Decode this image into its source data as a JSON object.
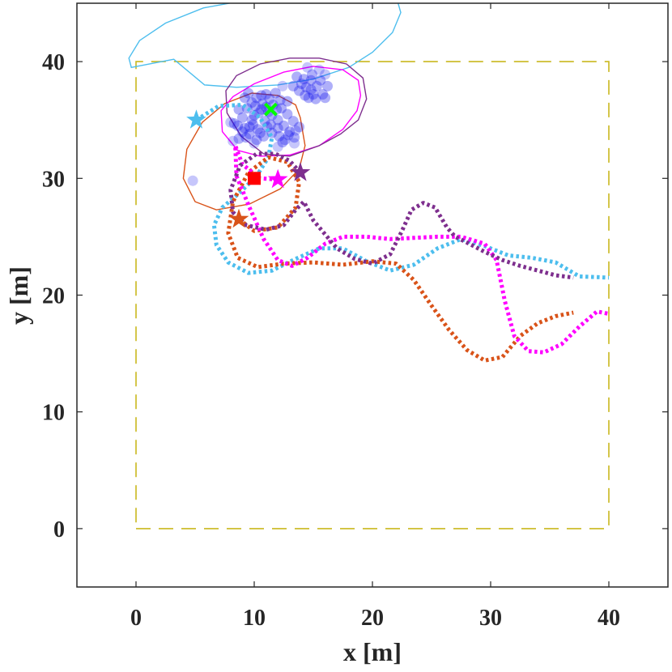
{
  "chart_data": {
    "type": "scatter",
    "title": "",
    "xlabel": "x [m]",
    "ylabel": "y [m]",
    "xlim": [
      -5,
      45
    ],
    "ylim": [
      -5,
      45
    ],
    "xticks": [
      0,
      10,
      20,
      30,
      40
    ],
    "yticks": [
      0,
      10,
      20,
      30,
      40
    ],
    "grid": false,
    "legend": "none",
    "boundary": {
      "x": [
        0,
        40,
        40,
        0,
        0
      ],
      "y": [
        0,
        0,
        40,
        40,
        0
      ],
      "color": "#c9b81e",
      "style": "dashed"
    },
    "paths": [
      {
        "color": "#4dbeee",
        "style": "dotted",
        "start_star": [
          5.1,
          35.0
        ],
        "x": [
          5.1,
          7,
          9,
          10.5,
          11.5,
          11.2,
          10.2,
          8.8,
          7.3,
          6.6,
          6.8,
          7.8,
          9.5,
          11.5,
          13.5,
          15.5,
          17.5,
          19.5,
          21.5,
          23.5,
          25.5,
          27.5,
          29.5,
          31.5,
          33.5,
          35.5,
          37.5,
          40
        ],
        "y": [
          35.0,
          36.2,
          36.3,
          35.2,
          33.5,
          31.8,
          30.2,
          28.8,
          27.5,
          26.0,
          24.3,
          22.8,
          21.9,
          22.1,
          23.1,
          24.0,
          24.0,
          22.9,
          22.1,
          22.6,
          24.0,
          24.8,
          24.2,
          23.4,
          23.2,
          22.8,
          21.6,
          21.5
        ]
      },
      {
        "color": "#d95319",
        "style": "dotted",
        "start_star": [
          8.7,
          26.5
        ],
        "x": [
          8.7,
          10,
          12,
          13.5,
          13.8,
          12.8,
          11.2,
          9.5,
          8.2,
          7.8,
          8.6,
          10.3,
          12.5,
          15,
          17.5,
          20,
          22,
          23.5,
          25,
          26.5,
          28,
          29.5,
          31,
          32.5,
          34,
          35.5,
          37
        ],
        "y": [
          26.5,
          25.5,
          25.8,
          27.5,
          29.7,
          31.4,
          31.8,
          30.5,
          28.0,
          25.3,
          23.2,
          22.4,
          22.7,
          22.8,
          22.6,
          22.9,
          22.7,
          21.3,
          19.1,
          17.0,
          15.3,
          14.4,
          14.7,
          16.5,
          17.6,
          18.2,
          18.5
        ]
      },
      {
        "color": "#ff00ff",
        "style": "dotted",
        "start_star": [
          12.0,
          29.9
        ],
        "x": [
          12.0,
          10.5,
          9.0,
          8.4,
          8.5,
          9.6,
          10.8,
          12.0,
          13.2,
          14.5,
          16.0,
          17.5,
          19.5,
          21.5,
          23.5,
          25.5,
          27.5,
          29.5,
          30.5,
          31.2,
          32.0,
          33.2,
          34.5,
          36.0,
          37.5,
          39.0,
          40
        ],
        "y": [
          29.9,
          30.0,
          31.2,
          32.8,
          30.2,
          27.5,
          24.8,
          23.0,
          22.5,
          23.2,
          24.4,
          25.0,
          25.0,
          24.8,
          24.9,
          25.0,
          25.0,
          24.4,
          23.0,
          19.5,
          16.5,
          15.2,
          15.1,
          15.8,
          17.3,
          18.6,
          18.4
        ]
      },
      {
        "color": "#7e2f8e",
        "style": "dotted",
        "start_star": [
          13.9,
          30.5
        ],
        "x": [
          13.9,
          13.0,
          11.8,
          10.2,
          8.8,
          8.0,
          8.2,
          9.3,
          11.0,
          12.5,
          13.5,
          14.2,
          15.0,
          16.0,
          17.0,
          18.5,
          20.0,
          21.5,
          22.5,
          23.3,
          24.3,
          25.3,
          26.3,
          27.0,
          28.0,
          29.5,
          31.0,
          32.5,
          34.0,
          35.5,
          37.0
        ],
        "y": [
          30.5,
          31.5,
          32.1,
          32.1,
          31.1,
          29.0,
          27.1,
          26.0,
          25.6,
          26.0,
          27.3,
          28.0,
          26.4,
          25.2,
          24.0,
          23.1,
          22.7,
          23.5,
          25.5,
          27.3,
          27.9,
          27.5,
          25.8,
          25.0,
          24.5,
          23.7,
          23.0,
          22.5,
          22.1,
          21.7,
          21.5
        ]
      }
    ],
    "ellipses": [
      {
        "color": "#4dbeee",
        "points": [
          [
            3.2,
            40.2
          ],
          [
            -0.4,
            39.5
          ],
          [
            -0.6,
            40.3
          ],
          [
            0.3,
            41.8
          ],
          [
            2.5,
            43.3
          ],
          [
            5.7,
            44.6
          ],
          [
            9.5,
            45.3
          ],
          [
            13.3,
            45.6
          ],
          [
            17.0,
            45.7
          ],
          [
            20.0,
            45.8
          ],
          [
            22.0,
            45.6
          ],
          [
            22.4,
            44.2
          ],
          [
            21.7,
            42.5
          ],
          [
            20.0,
            40.8
          ],
          [
            18.0,
            39.5
          ],
          [
            15.0,
            38.5
          ],
          [
            12.0,
            38.0
          ],
          [
            8.5,
            37.8
          ],
          [
            5.8,
            38.0
          ],
          [
            3.2,
            40.2
          ]
        ]
      },
      {
        "color": "#d95319",
        "points": [
          [
            13.9,
            35.2
          ],
          [
            14.3,
            32.8
          ],
          [
            13.8,
            30.8
          ],
          [
            12.2,
            29.1
          ],
          [
            9.6,
            27.8
          ],
          [
            6.8,
            27.3
          ],
          [
            5.0,
            28.0
          ],
          [
            4.0,
            30.0
          ],
          [
            4.3,
            32.5
          ],
          [
            5.6,
            34.8
          ],
          [
            7.5,
            36.4
          ],
          [
            9.8,
            37.3
          ],
          [
            12.0,
            37.1
          ],
          [
            13.5,
            36.3
          ],
          [
            13.9,
            35.2
          ]
        ]
      },
      {
        "color": "#ff00ff",
        "points": [
          [
            19.0,
            37.1
          ],
          [
            18.7,
            35.8
          ],
          [
            17.5,
            34.2
          ],
          [
            15.5,
            32.8
          ],
          [
            13.0,
            32.0
          ],
          [
            10.5,
            31.9
          ],
          [
            8.6,
            32.4
          ],
          [
            7.3,
            34.0
          ],
          [
            7.2,
            35.8
          ],
          [
            8.2,
            37.0
          ],
          [
            10.0,
            38.1
          ],
          [
            12.5,
            39.1
          ],
          [
            15.0,
            39.6
          ],
          [
            17.5,
            39.3
          ],
          [
            18.8,
            38.4
          ],
          [
            19.0,
            37.1
          ]
        ]
      },
      {
        "color": "#7e2f8e",
        "points": [
          [
            19.5,
            36.8
          ],
          [
            18.8,
            35.0
          ],
          [
            17.3,
            33.8
          ],
          [
            15.5,
            32.8
          ],
          [
            13.0,
            31.9
          ],
          [
            10.8,
            32.1
          ],
          [
            8.9,
            33.6
          ],
          [
            7.7,
            35.6
          ],
          [
            7.6,
            37.5
          ],
          [
            8.5,
            38.8
          ],
          [
            10.5,
            39.8
          ],
          [
            13.0,
            40.3
          ],
          [
            15.5,
            40.3
          ],
          [
            17.8,
            39.8
          ],
          [
            19.2,
            38.6
          ],
          [
            19.5,
            36.8
          ]
        ]
      }
    ],
    "particles": {
      "color": "#1a1aee",
      "points": [
        [
          8.6,
          34.5
        ],
        [
          9.0,
          35.2
        ],
        [
          9.4,
          36.0
        ],
        [
          9.8,
          36.5
        ],
        [
          10.2,
          36.9
        ],
        [
          10.6,
          37.1
        ],
        [
          11.0,
          37.2
        ],
        [
          11.3,
          36.8
        ],
        [
          11.0,
          36.1
        ],
        [
          10.4,
          35.6
        ],
        [
          9.8,
          35.0
        ],
        [
          9.2,
          34.3
        ],
        [
          9.6,
          33.8
        ],
        [
          10.3,
          34.2
        ],
        [
          10.9,
          34.9
        ],
        [
          11.5,
          35.4
        ],
        [
          12.0,
          35.0
        ],
        [
          12.5,
          34.5
        ],
        [
          13.0,
          34.0
        ],
        [
          12.6,
          33.3
        ],
        [
          12.1,
          33.6
        ],
        [
          11.5,
          33.9
        ],
        [
          10.8,
          33.6
        ],
        [
          10.2,
          33.3
        ],
        [
          12.3,
          36.0
        ],
        [
          12.8,
          35.5
        ],
        [
          13.3,
          34.9
        ],
        [
          13.8,
          34.4
        ],
        [
          12.8,
          36.6
        ],
        [
          11.8,
          37.3
        ],
        [
          9.2,
          36.9
        ],
        [
          8.7,
          35.9
        ],
        [
          9.0,
          34.0
        ],
        [
          9.9,
          34.6
        ],
        [
          10.6,
          35.9
        ],
        [
          11.9,
          35.9
        ],
        [
          13.3,
          37.9
        ],
        [
          13.8,
          37.5
        ],
        [
          14.3,
          37.1
        ],
        [
          14.8,
          37.6
        ],
        [
          15.3,
          37.9
        ],
        [
          15.8,
          37.2
        ],
        [
          15.2,
          36.8
        ],
        [
          14.6,
          36.9
        ],
        [
          14.0,
          38.1
        ],
        [
          16.2,
          37.9
        ],
        [
          15.6,
          38.4
        ],
        [
          14.8,
          38.4
        ],
        [
          13.6,
          38.7
        ],
        [
          16.0,
          36.9
        ],
        [
          14.4,
          37.8
        ],
        [
          12.4,
          33.1
        ],
        [
          12.9,
          33.7
        ],
        [
          13.4,
          33.5
        ],
        [
          9.5,
          37.3
        ],
        [
          8.3,
          34.7
        ],
        [
          8.7,
          33.4
        ],
        [
          9.3,
          33.5
        ],
        [
          11.1,
          34.4
        ],
        [
          10.7,
          36.4
        ],
        [
          11.6,
          36.3
        ],
        [
          12.2,
          36.7
        ],
        [
          14.9,
          38.9
        ],
        [
          10.0,
          35.4
        ],
        [
          9.6,
          34.4
        ],
        [
          10.5,
          33.9
        ],
        [
          11.4,
          34.6
        ],
        [
          12.0,
          34.3
        ],
        [
          11.2,
          35.7
        ],
        [
          10.1,
          36.2
        ],
        [
          14.2,
          38.5
        ],
        [
          15.0,
          37.2
        ]
      ],
      "faint": [
        [
          4.8,
          29.8
        ],
        [
          8.2,
          33.2
        ],
        [
          8.0,
          34.8
        ],
        [
          13.4,
          33.0
        ],
        [
          13.5,
          34.1
        ],
        [
          12.4,
          37.9
        ],
        [
          14.5,
          39.5
        ],
        [
          16.0,
          38.9
        ],
        [
          15.5,
          39.3
        ],
        [
          10.0,
          33.0
        ],
        [
          12.0,
          32.7
        ]
      ]
    },
    "true_position": {
      "x": 11.4,
      "y": 35.9,
      "color": "#00ff00",
      "marker": "x"
    },
    "source_marker": {
      "x": 10.0,
      "y": 30.0,
      "color": "#ff0000",
      "marker": "square"
    }
  }
}
